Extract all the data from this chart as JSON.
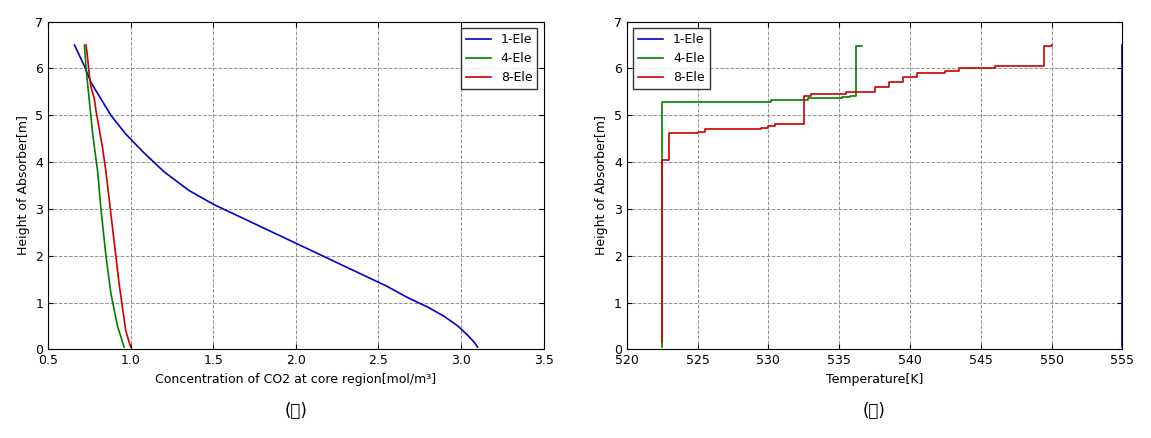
{
  "left": {
    "title": "(가)",
    "xlabel": "Concentration of CO2 at core region[mol/m³]",
    "ylabel": "Height of Absorber[m]",
    "xlim": [
      0.5,
      3.5
    ],
    "ylim": [
      0,
      7
    ],
    "xticks": [
      0.5,
      1.0,
      1.5,
      2.0,
      2.5,
      3.0,
      3.5
    ],
    "yticks": [
      0,
      1,
      2,
      3,
      4,
      5,
      6,
      7
    ],
    "legend_labels": [
      "1-Ele",
      "4-Ele",
      "8-Ele"
    ],
    "colors": [
      "#0000CD",
      "#008000",
      "#CC0000"
    ],
    "line1_x": [
      3.1,
      3.08,
      3.04,
      2.98,
      2.9,
      2.8,
      2.68,
      2.55,
      2.4,
      2.25,
      2.1,
      1.95,
      1.8,
      1.65,
      1.5,
      1.35,
      1.2,
      1.08,
      0.97,
      0.88,
      0.82,
      0.76,
      0.72,
      0.68,
      0.66
    ],
    "line1_y": [
      0.05,
      0.15,
      0.3,
      0.5,
      0.7,
      0.9,
      1.1,
      1.35,
      1.6,
      1.85,
      2.1,
      2.35,
      2.6,
      2.85,
      3.1,
      3.4,
      3.8,
      4.2,
      4.6,
      5.0,
      5.35,
      5.7,
      6.05,
      6.35,
      6.5
    ],
    "line2_x": [
      0.96,
      0.92,
      0.88,
      0.85,
      0.82,
      0.8,
      0.77,
      0.75,
      0.73,
      0.72
    ],
    "line2_y": [
      0.05,
      0.5,
      1.2,
      2.0,
      3.0,
      3.8,
      4.6,
      5.3,
      6.0,
      6.5
    ],
    "line3_x": [
      1.0,
      0.97,
      0.95,
      0.93,
      0.91,
      0.89,
      0.87,
      0.85,
      0.83,
      0.81,
      0.79,
      0.78,
      0.76,
      0.75,
      0.74,
      0.73
    ],
    "line3_y": [
      0.05,
      0.4,
      0.9,
      1.4,
      2.0,
      2.6,
      3.2,
      3.8,
      4.3,
      4.7,
      5.1,
      5.35,
      5.6,
      5.85,
      6.2,
      6.5
    ]
  },
  "right": {
    "title": "(나)",
    "xlabel": "Temperature[K]",
    "ylabel": "Height of Absorber[m]",
    "xlim": [
      520,
      555
    ],
    "ylim": [
      0,
      7
    ],
    "xticks": [
      520,
      525,
      530,
      535,
      540,
      545,
      550,
      555
    ],
    "yticks": [
      0,
      1,
      2,
      3,
      4,
      5,
      6,
      7
    ],
    "legend_labels": [
      "1-Ele",
      "4-Ele",
      "8-Ele"
    ],
    "colors": [
      "#0000CD",
      "#008000",
      "#CC0000"
    ],
    "line1_x": [
      555,
      555
    ],
    "line1_y": [
      0.05,
      6.5
    ],
    "line2_x": [
      522.5,
      522.5,
      530.2,
      530.2,
      532.8,
      532.8,
      534.0,
      534.0,
      535.2,
      535.2,
      535.8,
      535.8,
      536.2,
      536.2,
      536.6
    ],
    "line2_y": [
      0.05,
      5.28,
      5.28,
      5.32,
      5.32,
      5.36,
      5.36,
      5.38,
      5.38,
      5.4,
      5.4,
      5.42,
      5.42,
      6.47,
      6.47
    ],
    "line3_x": [
      522.5,
      522.5,
      523.0,
      523.0,
      525.0,
      525.0,
      525.5,
      525.5,
      529.5,
      529.5,
      530.0,
      530.0,
      530.5,
      530.5,
      532.5,
      532.5,
      533.0,
      533.0,
      535.5,
      535.5,
      537.5,
      537.5,
      538.5,
      538.5,
      539.5,
      539.5,
      540.5,
      540.5,
      542.5,
      542.5,
      543.5,
      543.5,
      546.0,
      546.0,
      549.5,
      549.5,
      550.0,
      550.0
    ],
    "line3_y": [
      0.15,
      4.05,
      4.05,
      4.62,
      4.62,
      4.65,
      4.65,
      4.7,
      4.7,
      4.72,
      4.72,
      4.77,
      4.77,
      4.82,
      4.82,
      5.42,
      5.42,
      5.46,
      5.46,
      5.5,
      5.5,
      5.6,
      5.6,
      5.72,
      5.72,
      5.82,
      5.82,
      5.9,
      5.9,
      5.95,
      5.95,
      6.0,
      6.0,
      6.05,
      6.05,
      6.47,
      6.47,
      6.5
    ]
  }
}
